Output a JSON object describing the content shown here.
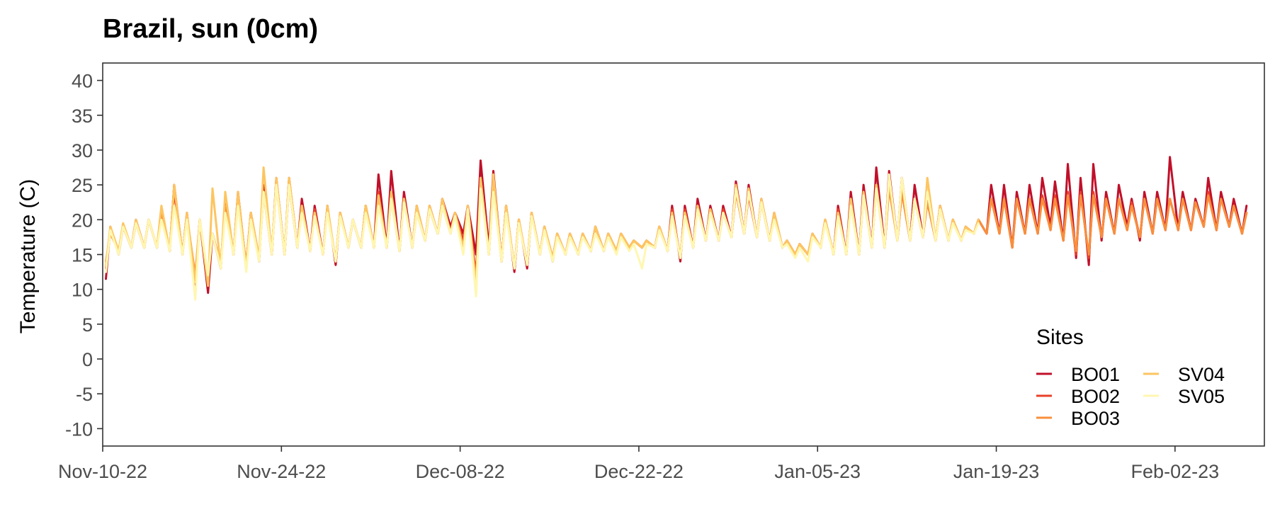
{
  "chart_data": {
    "type": "line",
    "title": "Brazil, sun (0cm)",
    "xlabel": "",
    "ylabel": "Temperature (C)",
    "xlim": [
      "2022-11-10",
      "2023-02-09"
    ],
    "ylim": [
      -12.5,
      42.5
    ],
    "x_ticks": [
      "2022-11-10",
      "2022-11-24",
      "2022-12-08",
      "2022-12-22",
      "2023-01-05",
      "2023-01-19",
      "2023-02-02"
    ],
    "x_tick_labels": [
      "Nov-10-22",
      "Nov-24-22",
      "Dec-08-22",
      "Dec-22-22",
      "Jan-05-23",
      "Jan-19-23",
      "Feb-02-23"
    ],
    "y_ticks": [
      -10,
      -5,
      0,
      5,
      10,
      15,
      20,
      25,
      30,
      35,
      40
    ],
    "y_tick_labels": [
      "-10",
      "-5",
      "0",
      "5",
      "10",
      "15",
      "20",
      "25",
      "30",
      "35",
      "40"
    ],
    "grid": false,
    "legend": {
      "title": "Sites",
      "position": "bottom-right",
      "columns": 2
    },
    "series_note": "Each series is represented by daily minimum/maximum temperature (C) read from the plot.",
    "x": [
      "2022-11-10",
      "2022-11-11",
      "2022-11-12",
      "2022-11-13",
      "2022-11-14",
      "2022-11-15",
      "2022-11-16",
      "2022-11-17",
      "2022-11-18",
      "2022-11-19",
      "2022-11-20",
      "2022-11-21",
      "2022-11-22",
      "2022-11-23",
      "2022-11-24",
      "2022-11-25",
      "2022-11-26",
      "2022-11-27",
      "2022-11-28",
      "2022-11-29",
      "2022-11-30",
      "2022-12-01",
      "2022-12-02",
      "2022-12-03",
      "2022-12-04",
      "2022-12-05",
      "2022-12-06",
      "2022-12-07",
      "2022-12-08",
      "2022-12-09",
      "2022-12-10",
      "2022-12-11",
      "2022-12-12",
      "2022-12-13",
      "2022-12-14",
      "2022-12-15",
      "2022-12-16",
      "2022-12-17",
      "2022-12-18",
      "2022-12-19",
      "2022-12-20",
      "2022-12-21",
      "2022-12-22",
      "2022-12-23",
      "2022-12-24",
      "2022-12-25",
      "2022-12-26",
      "2022-12-27",
      "2022-12-28",
      "2022-12-29",
      "2022-12-30",
      "2022-12-31",
      "2023-01-01",
      "2023-01-02",
      "2023-01-03",
      "2023-01-04",
      "2023-01-05",
      "2023-01-06",
      "2023-01-07",
      "2023-01-08",
      "2023-01-09",
      "2023-01-10",
      "2023-01-11",
      "2023-01-12",
      "2023-01-13",
      "2023-01-14",
      "2023-01-15",
      "2023-01-16",
      "2023-01-17",
      "2023-01-18",
      "2023-01-19",
      "2023-01-20",
      "2023-01-21",
      "2023-01-22",
      "2023-01-23",
      "2023-01-24",
      "2023-01-25",
      "2023-01-26",
      "2023-01-27",
      "2023-01-28",
      "2023-01-29",
      "2023-01-30",
      "2023-01-31",
      "2023-02-01",
      "2023-02-02",
      "2023-02-03",
      "2023-02-04",
      "2023-02-05",
      "2023-02-06",
      "2023-02-07"
    ],
    "series": [
      {
        "name": "BO01",
        "color": "#C0102A",
        "min": [
          11.5,
          15,
          16,
          16,
          16,
          15.5,
          15,
          10,
          9.5,
          13,
          15,
          13,
          14,
          15,
          15,
          16,
          15.5,
          15,
          13.5,
          16,
          16,
          16,
          16,
          15.5,
          16,
          17,
          18,
          19,
          18,
          15,
          16,
          14,
          12.5,
          13,
          15,
          14,
          15,
          15,
          15.5,
          15.5,
          15.5,
          16,
          16,
          16,
          15.5,
          14,
          16,
          17,
          17,
          17.5,
          18,
          17.5,
          17,
          16,
          15,
          15,
          16,
          15,
          15,
          15,
          16,
          16,
          17,
          17,
          17.5,
          17,
          17,
          17,
          18,
          18,
          18,
          16,
          18,
          18,
          19,
          17,
          14.5,
          13.5,
          17,
          18,
          19,
          17,
          18,
          18.5,
          18.5,
          18.5,
          19,
          18.5,
          19,
          18
        ],
        "max": [
          19,
          19,
          20,
          20,
          21,
          25,
          21,
          20,
          18,
          23,
          24,
          21,
          25,
          26,
          26,
          23,
          22,
          22,
          21,
          20,
          22,
          26.5,
          27,
          24,
          22,
          22,
          23,
          21,
          22,
          28.5,
          27,
          22,
          20,
          21,
          19,
          18,
          18,
          18,
          19,
          18,
          18,
          17,
          17,
          19,
          22,
          22,
          23,
          22,
          22,
          25.5,
          25,
          23,
          21,
          17,
          16.5,
          18,
          20,
          22,
          24,
          25,
          27.5,
          27,
          26,
          25,
          24,
          22,
          20,
          19,
          20,
          25,
          25,
          24,
          25,
          26,
          25.5,
          28,
          26,
          28,
          24,
          25,
          23,
          24,
          24,
          29,
          24,
          23,
          26,
          24,
          23,
          22
        ]
      },
      {
        "name": "BO02",
        "color": "#E8402A",
        "min": [
          13,
          15.5,
          16,
          16,
          16,
          15.5,
          15,
          11,
          11,
          13.5,
          15,
          13.5,
          14.5,
          15,
          15,
          16,
          15.5,
          15,
          14,
          16,
          16,
          16,
          16,
          15.5,
          16,
          17,
          18,
          18.5,
          17,
          12,
          15,
          14,
          13,
          13.5,
          15,
          14.5,
          15,
          15,
          15.5,
          15.5,
          15.5,
          16,
          16,
          16,
          15.5,
          14.5,
          16,
          17,
          17,
          17.5,
          18,
          17.5,
          17,
          16,
          15,
          15,
          16,
          15,
          15,
          15,
          16,
          16,
          17,
          17,
          17.5,
          17,
          17,
          17,
          18,
          18,
          18,
          16,
          18,
          18,
          18.5,
          17,
          15,
          14.5,
          17.5,
          18,
          18.5,
          17.5,
          18,
          18.5,
          18.5,
          18.5,
          19,
          18.5,
          19,
          18
        ],
        "max": [
          18.5,
          19,
          19.5,
          20,
          21,
          24,
          20.5,
          20,
          18,
          22,
          23,
          21,
          24,
          25.5,
          25,
          22,
          21.5,
          21.5,
          21,
          20,
          22,
          24,
          24,
          23,
          21.5,
          21.5,
          22,
          21,
          22,
          26,
          25,
          22,
          20,
          21,
          19,
          18,
          18,
          18,
          19,
          18,
          18,
          17,
          17,
          19,
          21.5,
          21.5,
          22,
          21.5,
          21.5,
          24,
          23.5,
          22.5,
          20.5,
          17,
          16.5,
          18,
          20,
          21.5,
          23,
          24,
          25,
          25,
          24,
          23,
          23,
          22,
          20,
          19,
          20,
          23,
          23,
          23,
          23,
          23.5,
          23.5,
          24,
          24,
          24,
          23,
          23,
          22.5,
          23,
          23,
          23,
          23,
          22.5,
          24,
          23,
          22,
          21
        ]
      },
      {
        "name": "BO03",
        "color": "#F88F3C",
        "min": [
          14,
          15.5,
          16,
          16,
          16,
          15.5,
          15,
          12,
          11.5,
          13.5,
          15,
          13.5,
          14.5,
          15,
          15,
          16,
          15.5,
          15,
          14,
          16,
          16,
          16,
          16,
          15.5,
          16,
          17,
          18,
          18,
          16,
          11,
          15,
          14,
          13,
          13.5,
          15,
          14.5,
          15,
          15,
          15.5,
          15.5,
          15.5,
          16,
          16,
          16,
          15.5,
          14.5,
          16,
          17,
          17,
          17.5,
          18,
          17.5,
          17,
          16,
          15,
          15,
          16,
          15,
          15,
          15,
          16,
          16,
          17,
          17,
          17.5,
          17,
          17,
          17,
          18,
          18,
          18,
          16,
          18,
          18,
          18.5,
          17,
          15.5,
          15,
          17.5,
          18,
          18.5,
          17.5,
          18,
          18.5,
          18.5,
          18.5,
          19,
          18.5,
          19,
          18
        ],
        "max": [
          18,
          19,
          19.5,
          20,
          21,
          25,
          20.5,
          20,
          18,
          22,
          23,
          21,
          24,
          25,
          26,
          22,
          21,
          21.5,
          21,
          20,
          22,
          23,
          23,
          23,
          21,
          21.5,
          22,
          21,
          22,
          25,
          24.5,
          22,
          20,
          21,
          19,
          18,
          18,
          18,
          19,
          18,
          18,
          17,
          17,
          19,
          21,
          21,
          22,
          21.5,
          21,
          24,
          24,
          22.5,
          20.5,
          17,
          16.5,
          18,
          20,
          21,
          22.5,
          23.5,
          24.5,
          24.5,
          24,
          23,
          22.5,
          21.5,
          20,
          19,
          20,
          23,
          23,
          23,
          23,
          23,
          23,
          23.5,
          23.5,
          23.5,
          23,
          23,
          22,
          23,
          23,
          23,
          23,
          22.5,
          23.5,
          23,
          22,
          21
        ]
      },
      {
        "name": "SV04",
        "color": "#FDC561",
        "min": [
          13.5,
          15.5,
          16,
          16,
          16,
          15.5,
          15,
          11,
          10.5,
          13,
          15,
          13,
          14.5,
          15,
          15,
          16,
          15.5,
          15,
          14,
          16,
          16,
          16,
          16,
          15.5,
          16,
          17,
          18,
          18,
          16,
          10.5,
          15,
          14,
          13,
          13.5,
          15,
          14.5,
          15,
          15,
          15.5,
          15.5,
          15.5,
          16,
          16,
          16,
          15.5,
          14.5,
          16,
          17,
          17,
          17.5,
          18,
          17.5,
          17,
          16,
          15,
          15,
          16,
          15,
          15,
          15,
          16,
          16,
          17,
          17,
          17.5,
          17,
          17,
          17,
          18,
          18,
          18,
          16,
          null,
          null,
          null,
          null,
          null,
          null,
          null,
          null,
          null,
          null,
          null,
          null,
          null,
          null,
          null,
          null,
          null,
          null
        ],
        "max": [
          19,
          19.5,
          20,
          20,
          22,
          25,
          21,
          20,
          24.5,
          24,
          24,
          21,
          27.5,
          26,
          26,
          22,
          21,
          22,
          21,
          20,
          22,
          23.5,
          24,
          23,
          22,
          22,
          23,
          21,
          22,
          26,
          26.5,
          22,
          20,
          21,
          19,
          18,
          18,
          18,
          19,
          18,
          18,
          17,
          17,
          19,
          21,
          21,
          22,
          21.5,
          21,
          25,
          24.5,
          23,
          21,
          17,
          16.5,
          18,
          20,
          21,
          23,
          24,
          25,
          25.5,
          25.5,
          23,
          26,
          22,
          20,
          19,
          20,
          null,
          null,
          null,
          null,
          null,
          null,
          null,
          null,
          null,
          null,
          null,
          null,
          null,
          null,
          null,
          null,
          null,
          null,
          null,
          null,
          null
        ]
      },
      {
        "name": "SV05",
        "color": "#FFF7B0",
        "min": [
          12.5,
          15,
          16,
          16,
          16,
          15.5,
          15,
          8.5,
          12,
          13,
          15,
          12.5,
          14,
          15,
          15,
          16,
          15.5,
          15,
          14,
          16,
          16,
          16,
          16,
          15.5,
          16,
          17,
          18,
          18,
          15,
          9,
          15,
          14,
          13,
          13.5,
          15,
          14,
          15,
          15,
          15.5,
          15.5,
          15,
          15.5,
          13,
          16,
          15.5,
          14.5,
          16,
          17,
          17,
          17.5,
          18,
          17.5,
          17,
          16,
          14.5,
          14,
          16,
          15,
          15,
          15,
          16,
          16,
          17,
          17,
          17.5,
          17,
          17,
          17,
          18,
          18,
          16,
          16,
          null,
          null,
          null,
          null,
          null,
          null,
          null,
          null,
          null,
          null,
          null,
          null,
          null,
          null,
          null,
          null,
          null,
          null
        ],
        "max": [
          18.5,
          19,
          19.5,
          20,
          20,
          22,
          20,
          20,
          18,
          21,
          22,
          20,
          24,
          25,
          25,
          21,
          20.5,
          21,
          20.5,
          20,
          21,
          22,
          23,
          22.5,
          21,
          21.5,
          22,
          20.5,
          21.5,
          24.5,
          24,
          21,
          19.5,
          20.5,
          18.5,
          17.5,
          17.5,
          17.5,
          18,
          17.5,
          17.5,
          16.5,
          16.5,
          18.5,
          20.5,
          20.5,
          21.5,
          21,
          21,
          24.5,
          24,
          22.5,
          20,
          16.5,
          16,
          17.5,
          19.5,
          20.5,
          22,
          23.5,
          24.5,
          26.5,
          26,
          23,
          24,
          21.5,
          19.5,
          18.5,
          19.5,
          null,
          null,
          null,
          null,
          null,
          null,
          null,
          null,
          null,
          null,
          null,
          null,
          null,
          null,
          null,
          null,
          null,
          null,
          null,
          null,
          null
        ]
      }
    ]
  }
}
